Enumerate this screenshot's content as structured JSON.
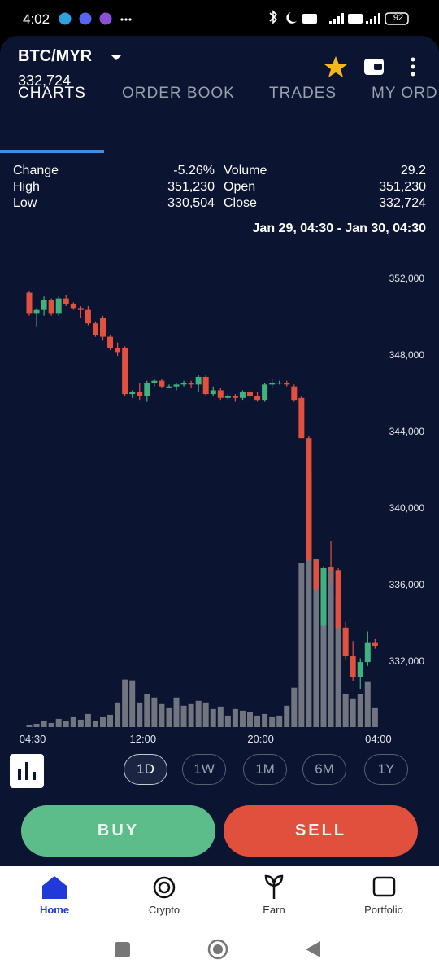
{
  "status_bar": {
    "time": "4:02",
    "battery": "92"
  },
  "header": {
    "pair": "BTC/MYR",
    "price": "332,724"
  },
  "tabs": [
    "CHARTS",
    "ORDER BOOK",
    "TRADES",
    "MY ORD"
  ],
  "stats": {
    "left": [
      [
        "Change",
        "-5.26%"
      ],
      [
        "High",
        "351,230"
      ],
      [
        "Low",
        "330,504"
      ]
    ],
    "right": [
      [
        "Volume",
        "29.2"
      ],
      [
        "Open",
        "351,230"
      ],
      [
        "Close",
        "332,724"
      ]
    ]
  },
  "range": "Jan 29, 04:30 - Jan 30, 04:30",
  "chart_data": {
    "type": "candlestick",
    "up_color": "#3fb27f",
    "down_color": "#e2513d",
    "volume_color": "#71757f",
    "open": [
      351200,
      350100,
      350300,
      350800,
      350100,
      350900,
      350600,
      350400,
      350300,
      349600,
      349900,
      348900,
      348300,
      348300,
      345900,
      346000,
      345800,
      346500,
      346600,
      346300,
      346300,
      346400,
      346500,
      346400,
      346800,
      345900,
      346100,
      345700,
      345800,
      345700,
      346000,
      345800,
      345600,
      346400,
      346500,
      346500,
      346300,
      345700,
      343600,
      337200,
      333800,
      336800,
      336700,
      333700,
      332200,
      331100,
      331900,
      332900
    ],
    "high": [
      351300,
      350400,
      351000,
      350900,
      351000,
      351100,
      350700,
      350500,
      350500,
      349700,
      350000,
      349000,
      348600,
      348400,
      346100,
      346500,
      346600,
      346700,
      346700,
      346400,
      346500,
      346600,
      346600,
      346900,
      346900,
      346300,
      346200,
      345900,
      345900,
      346100,
      346100,
      346000,
      346500,
      346700,
      346600,
      346600,
      346400,
      345800,
      343700,
      337300,
      336900,
      338200,
      336800,
      334000,
      333000,
      332100,
      333500,
      333100
    ],
    "low": [
      350000,
      349400,
      350000,
      350000,
      350000,
      350500,
      350300,
      349900,
      349500,
      348900,
      348700,
      348200,
      347900,
      345800,
      345700,
      345600,
      345500,
      346300,
      346200,
      346200,
      346100,
      346300,
      346200,
      346000,
      345800,
      345800,
      345600,
      345600,
      345500,
      345600,
      345700,
      345500,
      345500,
      346200,
      346400,
      346300,
      345500,
      343600,
      337200,
      335600,
      333600,
      336000,
      333600,
      332000,
      330900,
      330500,
      331700,
      332600
    ],
    "close": [
      350100,
      350300,
      350800,
      350100,
      350900,
      350600,
      350400,
      350300,
      349600,
      349000,
      348900,
      348300,
      348100,
      345900,
      346000,
      345800,
      346500,
      346600,
      346300,
      346300,
      346400,
      346500,
      346400,
      346800,
      345900,
      346100,
      345700,
      345800,
      345700,
      346000,
      345800,
      345600,
      346400,
      346500,
      346500,
      346400,
      345600,
      343600,
      337200,
      335700,
      336800,
      336700,
      333700,
      332200,
      331100,
      331900,
      332900,
      332724
    ],
    "volume": [
      3,
      4,
      8,
      5,
      10,
      7,
      12,
      9,
      16,
      8,
      12,
      15,
      30,
      58,
      57,
      30,
      40,
      36,
      28,
      24,
      36,
      26,
      28,
      32,
      30,
      22,
      25,
      14,
      22,
      20,
      18,
      14,
      16,
      12,
      14,
      26,
      48,
      200,
      310,
      205,
      190,
      195,
      160,
      40,
      35,
      40,
      55,
      24
    ],
    "ylim": [
      328500,
      352500
    ],
    "yticks": [
      {
        "value": 352000,
        "label": "352,000"
      },
      {
        "value": 348000,
        "label": "348,000"
      },
      {
        "value": 344000,
        "label": "344,000"
      },
      {
        "value": 340000,
        "label": "340,000"
      },
      {
        "value": 336000,
        "label": "336,000"
      },
      {
        "value": 332000,
        "label": "332,000"
      }
    ],
    "xticks": [
      {
        "value": 1,
        "label": "04:30"
      },
      {
        "value": 16,
        "label": "12:00"
      },
      {
        "value": 32,
        "label": "20:00"
      },
      {
        "value": 48,
        "label": "04:00"
      }
    ]
  },
  "timeframes": [
    "1D",
    "1W",
    "1M",
    "6M",
    "1Y"
  ],
  "actions": {
    "buy": "BUY",
    "sell": "SELL"
  },
  "nav": [
    "Home",
    "Crypto",
    "Earn",
    "Portfolio"
  ]
}
